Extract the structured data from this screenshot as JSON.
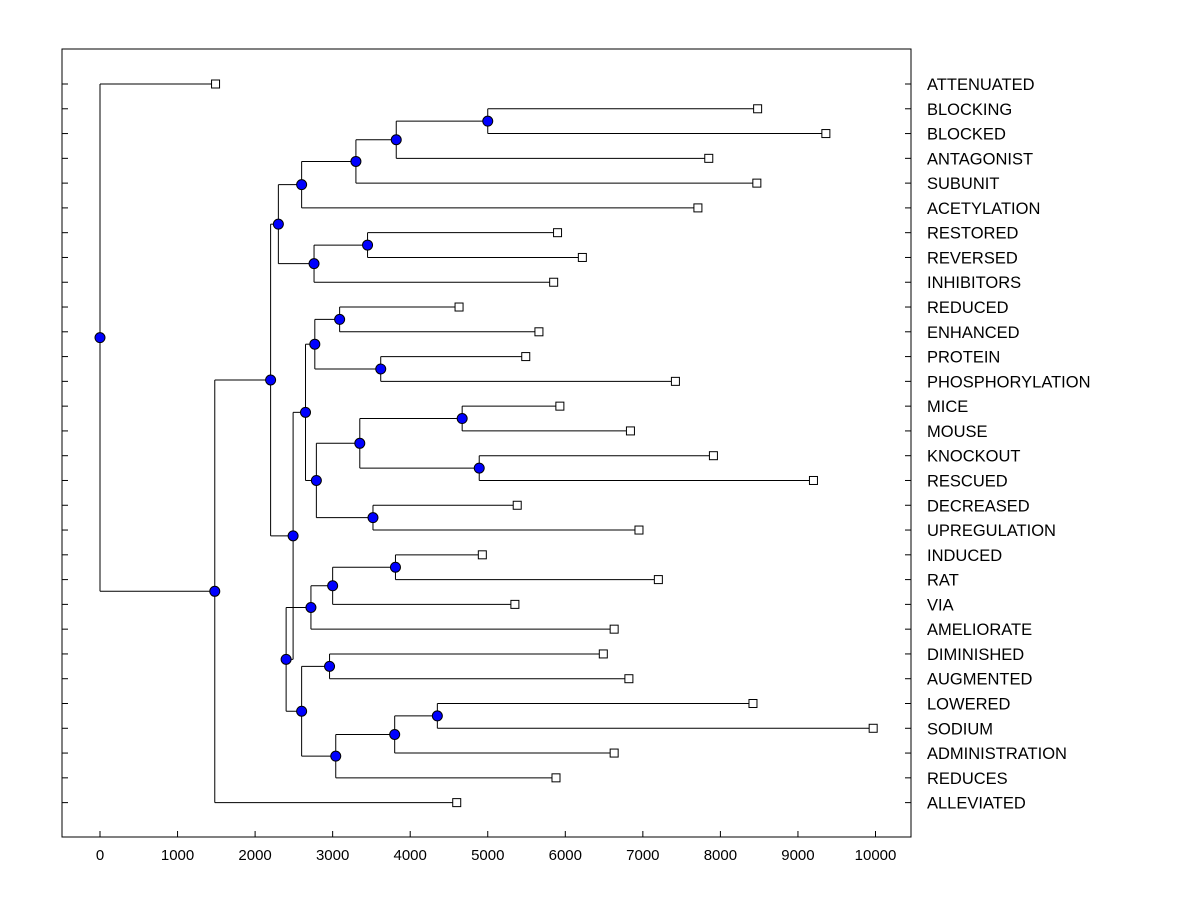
{
  "chart_data": {
    "type": "dendrogram",
    "orientation": "horizontal",
    "xlim": [
      -500,
      10500
    ],
    "xticks": [
      0,
      1000,
      2000,
      3000,
      4000,
      5000,
      6000,
      7000,
      8000,
      9000,
      10000
    ],
    "xtick_labels": [
      "0",
      "1000",
      "2000",
      "3000",
      "4000",
      "5000",
      "6000",
      "7000",
      "8000",
      "9000",
      "10000"
    ],
    "leaf_marker_color": "#ffffff",
    "node_marker_color": "#0000ff",
    "leaves": [
      {
        "id": "ATTENUATED",
        "label": "ATTENUATED",
        "x": 1490
      },
      {
        "id": "BLOCKING",
        "label": "BLOCKING",
        "x": 8480
      },
      {
        "id": "BLOCKED",
        "label": "BLOCKED",
        "x": 9360
      },
      {
        "id": "ANTAGONIST",
        "label": "ANTAGONIST",
        "x": 7850
      },
      {
        "id": "SUBUNIT",
        "label": "SUBUNIT",
        "x": 8470
      },
      {
        "id": "ACETYLATION",
        "label": "ACETYLATION",
        "x": 7710
      },
      {
        "id": "RESTORED",
        "label": "RESTORED",
        "x": 5900
      },
      {
        "id": "REVERSED",
        "label": "REVERSED",
        "x": 6220
      },
      {
        "id": "INHIBITORS",
        "label": "INHIBITORS",
        "x": 5850
      },
      {
        "id": "REDUCED",
        "label": "REDUCED",
        "x": 4630
      },
      {
        "id": "ENHANCED",
        "label": "ENHANCED",
        "x": 5660
      },
      {
        "id": "PROTEIN",
        "label": "PROTEIN",
        "x": 5490
      },
      {
        "id": "PHOSPHORYLATION",
        "label": "PHOSPHORYLATION",
        "x": 7420
      },
      {
        "id": "MICE",
        "label": "MICE",
        "x": 5930
      },
      {
        "id": "MOUSE",
        "label": "MOUSE",
        "x": 6840
      },
      {
        "id": "KNOCKOUT",
        "label": "KNOCKOUT",
        "x": 7910
      },
      {
        "id": "RESCUED",
        "label": "RESCUED",
        "x": 9200
      },
      {
        "id": "DECREASED",
        "label": "DECREASED",
        "x": 5380
      },
      {
        "id": "UPREGULATION",
        "label": "UPREGULATION",
        "x": 6950
      },
      {
        "id": "INDUCED",
        "label": "INDUCED",
        "x": 4930
      },
      {
        "id": "RAT",
        "label": "RAT",
        "x": 7200
      },
      {
        "id": "VIA",
        "label": "VIA",
        "x": 5350
      },
      {
        "id": "AMELIORATE",
        "label": "AMELIORATE",
        "x": 6630
      },
      {
        "id": "DIMINISHED",
        "label": "DIMINISHED",
        "x": 6490
      },
      {
        "id": "AUGMENTED",
        "label": "AUGMENTED",
        "x": 6820
      },
      {
        "id": "LOWERED",
        "label": "LOWERED",
        "x": 8420
      },
      {
        "id": "SODIUM",
        "label": "SODIUM",
        "x": 9970
      },
      {
        "id": "ADMINISTRATION",
        "label": "ADMINISTRATION",
        "x": 6630
      },
      {
        "id": "REDUCES",
        "label": "REDUCES",
        "x": 5880
      },
      {
        "id": "ALLEVIATED",
        "label": "ALLEVIATED",
        "x": 4600
      }
    ],
    "nodes": [
      {
        "id": "n1",
        "x": 5000,
        "children": [
          "BLOCKING",
          "BLOCKED"
        ]
      },
      {
        "id": "n2",
        "x": 3820,
        "children": [
          "n1",
          "ANTAGONIST"
        ]
      },
      {
        "id": "n3",
        "x": 3300,
        "children": [
          "n2",
          "SUBUNIT"
        ]
      },
      {
        "id": "n4",
        "x": 2600,
        "children": [
          "n3",
          "ACETYLATION"
        ]
      },
      {
        "id": "n5",
        "x": 3450,
        "children": [
          "RESTORED",
          "REVERSED"
        ]
      },
      {
        "id": "n6",
        "x": 2760,
        "children": [
          "n5",
          "INHIBITORS"
        ]
      },
      {
        "id": "n7",
        "x": 2300,
        "children": [
          "n4",
          "n6"
        ]
      },
      {
        "id": "n8",
        "x": 3090,
        "children": [
          "REDUCED",
          "ENHANCED"
        ]
      },
      {
        "id": "n9",
        "x": 3620,
        "children": [
          "PROTEIN",
          "PHOSPHORYLATION"
        ]
      },
      {
        "id": "n10",
        "x": 2770,
        "children": [
          "n8",
          "n9"
        ]
      },
      {
        "id": "n11",
        "x": 4670,
        "children": [
          "MICE",
          "MOUSE"
        ]
      },
      {
        "id": "n12",
        "x": 4890,
        "children": [
          "KNOCKOUT",
          "RESCUED"
        ]
      },
      {
        "id": "n13",
        "x": 3350,
        "children": [
          "n11",
          "n12"
        ]
      },
      {
        "id": "n14",
        "x": 3520,
        "children": [
          "DECREASED",
          "UPREGULATION"
        ]
      },
      {
        "id": "n15",
        "x": 2790,
        "children": [
          "n13",
          "n14"
        ]
      },
      {
        "id": "n16",
        "x": 2650,
        "children": [
          "n10",
          "n15"
        ]
      },
      {
        "id": "n17",
        "x": 3810,
        "children": [
          "INDUCED",
          "RAT"
        ]
      },
      {
        "id": "n18",
        "x": 3000,
        "children": [
          "n17",
          "VIA"
        ]
      },
      {
        "id": "n19",
        "x": 2720,
        "children": [
          "n18",
          "AMELIORATE"
        ]
      },
      {
        "id": "n20",
        "x": 2960,
        "children": [
          "DIMINISHED",
          "AUGMENTED"
        ]
      },
      {
        "id": "n21",
        "x": 4350,
        "children": [
          "LOWERED",
          "SODIUM"
        ]
      },
      {
        "id": "n22",
        "x": 3800,
        "children": [
          "n21",
          "ADMINISTRATION"
        ]
      },
      {
        "id": "n23",
        "x": 3040,
        "children": [
          "n22",
          "REDUCES"
        ]
      },
      {
        "id": "n24",
        "x": 2600,
        "children": [
          "n20",
          "n23"
        ]
      },
      {
        "id": "n25",
        "x": 2400,
        "children": [
          "n19",
          "n24"
        ]
      },
      {
        "id": "n26",
        "x": 2490,
        "children": [
          "n16",
          "n25"
        ]
      },
      {
        "id": "n27",
        "x": 2200,
        "children": [
          "n7",
          "n26"
        ]
      },
      {
        "id": "n28",
        "x": 1480,
        "children": [
          "n27",
          "ALLEVIATED"
        ]
      },
      {
        "id": "n29",
        "x": 0,
        "children": [
          "ATTENUATED",
          "n28"
        ]
      }
    ],
    "root": "n29"
  }
}
